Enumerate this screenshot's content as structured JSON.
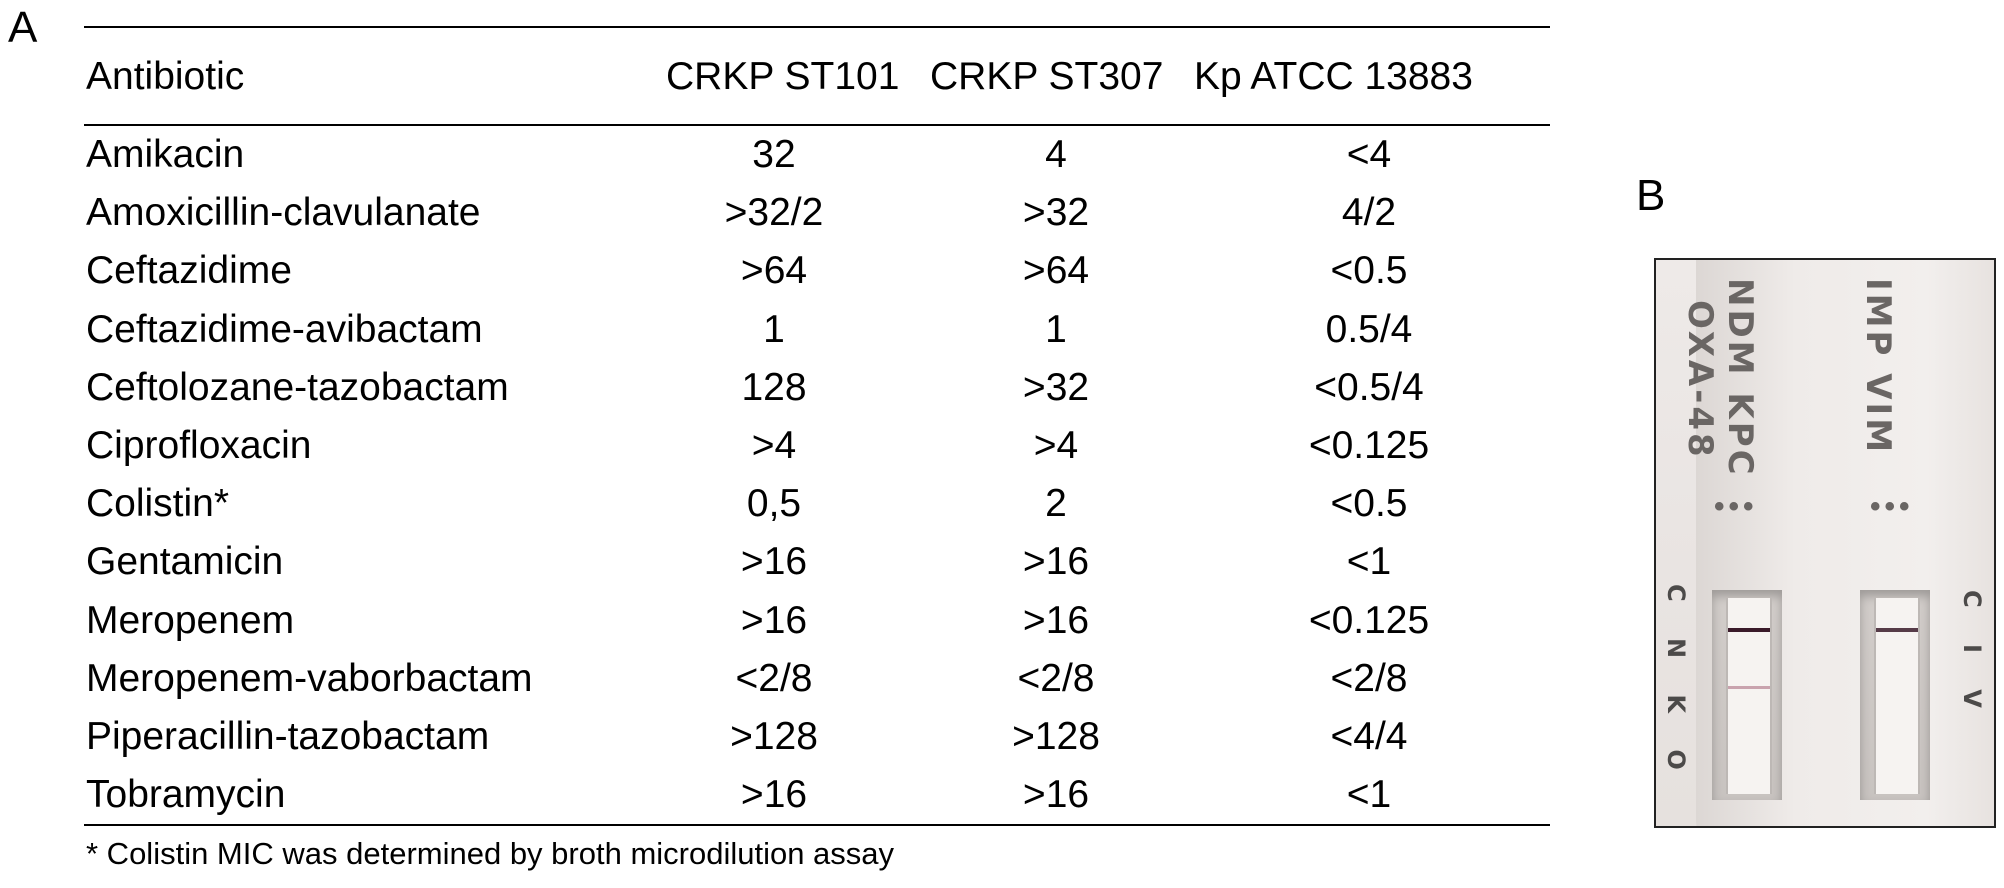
{
  "panel_a_label": "A",
  "panel_b_label": "B",
  "table": {
    "headers": [
      "Antibiotic",
      "CRKP ST101",
      "CRKP ST307",
      "Kp ATCC 13883"
    ],
    "rows": [
      [
        "Amikacin",
        "32",
        "4",
        "<4"
      ],
      [
        "Amoxicillin-clavulanate",
        ">32/2",
        ">32",
        "4/2"
      ],
      [
        "Ceftazidime",
        ">64",
        ">64",
        "<0.5"
      ],
      [
        "Ceftazidime-avibactam",
        "1",
        "1",
        "0.5/4"
      ],
      [
        "Ceftolozane-tazobactam",
        "128",
        ">32",
        "<0.5/4"
      ],
      [
        "Ciprofloxacin",
        ">4",
        ">4",
        "<0.125"
      ],
      [
        "Colistin*",
        "0,5",
        "2",
        "<0.5"
      ],
      [
        "Gentamicin",
        ">16",
        ">16",
        "<1"
      ],
      [
        "Meropenem",
        ">16",
        ">16",
        "<0.125"
      ],
      [
        "Meropenem-vaborbactam",
        "<2/8",
        "<2/8",
        "<2/8"
      ],
      [
        "Piperacillin-tazobactam",
        ">128",
        ">128",
        "<4/4"
      ],
      [
        "Tobramycin",
        ">16",
        ">16",
        "<1"
      ]
    ]
  },
  "footnote": "* Colistin MIC was determined by broth microdilution assay",
  "photo": {
    "left_strip_line1": "NDM KPC",
    "left_strip_line2": "OXA-48",
    "right_strip": "IMP VIM",
    "left_dots": "•••",
    "right_dots": "•••",
    "left_side_letters": "C N K O",
    "right_side_letters": "C I V",
    "band_color_control": "#3a1a2a",
    "band_color_faint": "#c9a3ae"
  }
}
